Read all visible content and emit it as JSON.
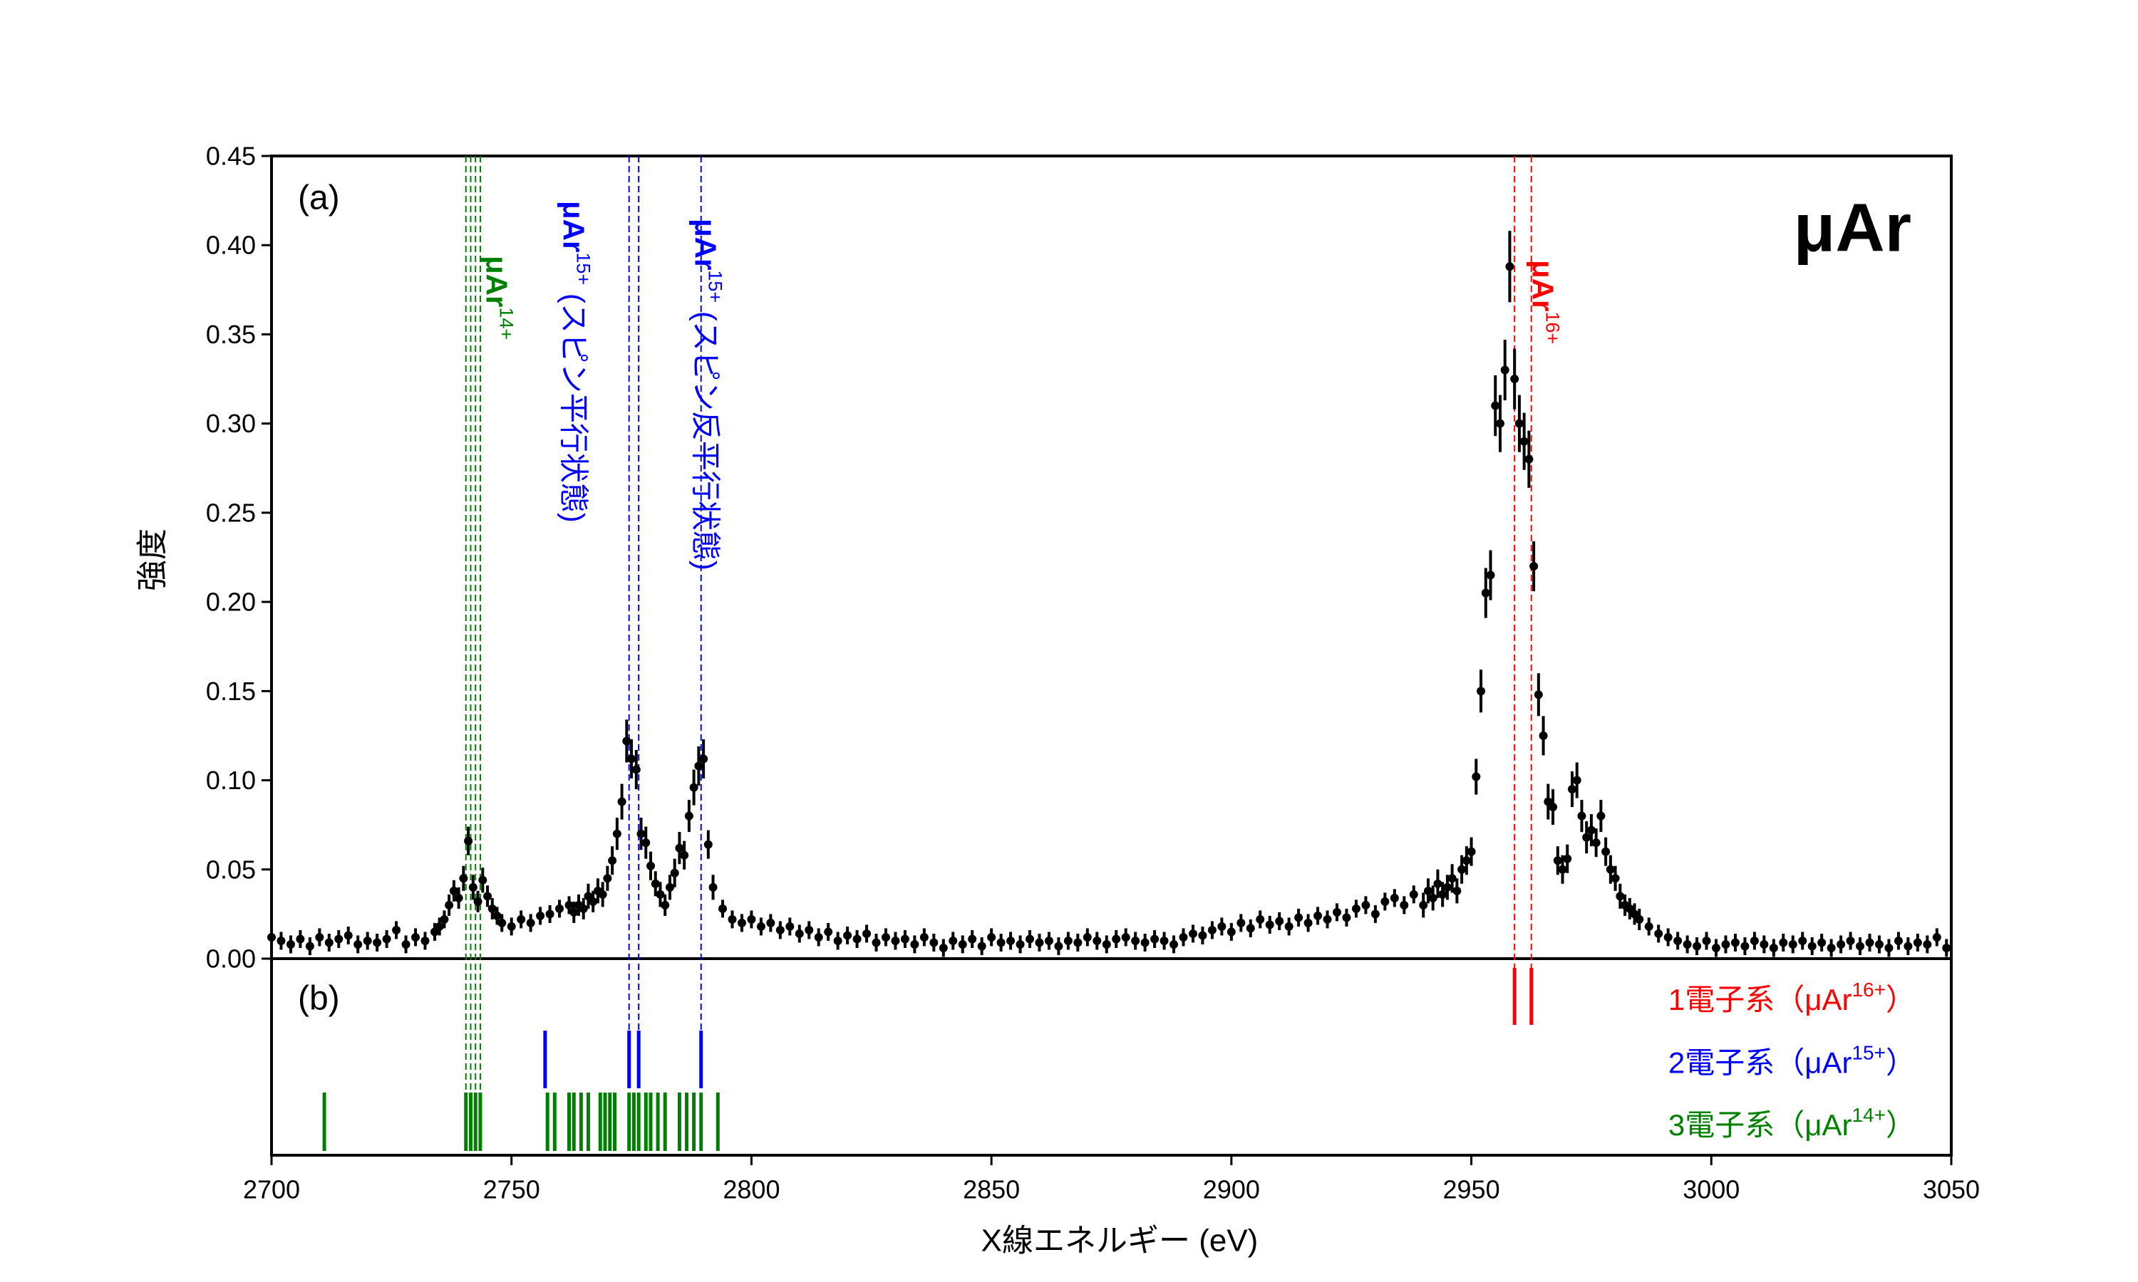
{
  "chart_data": {
    "type": "errorbar",
    "title": "μAr",
    "panel_labels": [
      "(a)",
      "(b)"
    ],
    "xlabel": "X線エネルギー (eV)",
    "ylabel": "強度",
    "xlim": [
      2700,
      3050
    ],
    "xticks": [
      2700,
      2750,
      2800,
      2850,
      2900,
      2950,
      3000,
      3050
    ],
    "ylim": [
      0,
      0.45
    ],
    "yticks": [
      {
        "value": 0,
        "label": "0.00"
      },
      {
        "value": 0.05,
        "label": "0.05"
      },
      {
        "value": 0.1,
        "label": "0.10"
      },
      {
        "value": 0.15,
        "label": "0.15"
      },
      {
        "value": 0.2,
        "label": "0.20"
      },
      {
        "value": 0.25,
        "label": "0.25"
      },
      {
        "value": 0.3,
        "label": "0.30"
      },
      {
        "value": 0.35,
        "label": "0.35"
      },
      {
        "value": 0.4,
        "label": "0.40"
      },
      {
        "value": 0.45,
        "label": "0.45"
      }
    ],
    "series": [
      {
        "color": "#000000",
        "x": [
          2700,
          2702,
          2704,
          2706,
          2708,
          2710,
          2712,
          2714,
          2716,
          2718,
          2720,
          2722,
          2724,
          2726,
          2728,
          2730,
          2732,
          2734,
          2735,
          2736,
          2737,
          2738,
          2739,
          2740,
          2741,
          2742,
          2743,
          2744,
          2745,
          2746,
          2747,
          2748,
          2750,
          2752,
          2754,
          2756,
          2758,
          2760,
          2762,
          2763,
          2764,
          2765,
          2766,
          2767,
          2768,
          2769,
          2770,
          2771,
          2772,
          2773,
          2774,
          2775,
          2776,
          2777,
          2778,
          2779,
          2780,
          2781,
          2782,
          2783,
          2784,
          2785,
          2786,
          2787,
          2788,
          2789,
          2790,
          2791,
          2792,
          2794,
          2796,
          2798,
          2800,
          2802,
          2804,
          2806,
          2808,
          2810,
          2812,
          2814,
          2816,
          2818,
          2820,
          2822,
          2824,
          2826,
          2828,
          2830,
          2832,
          2834,
          2836,
          2838,
          2840,
          2842,
          2844,
          2846,
          2848,
          2850,
          2852,
          2854,
          2856,
          2858,
          2860,
          2862,
          2864,
          2866,
          2868,
          2870,
          2872,
          2874,
          2876,
          2878,
          2880,
          2882,
          2884,
          2886,
          2888,
          2890,
          2892,
          2894,
          2896,
          2898,
          2900,
          2902,
          2904,
          2906,
          2908,
          2910,
          2912,
          2914,
          2916,
          2918,
          2920,
          2922,
          2924,
          2926,
          2928,
          2930,
          2932,
          2934,
          2936,
          2938,
          2940,
          2941,
          2942,
          2943,
          2944,
          2945,
          2946,
          2947,
          2948,
          2949,
          2950,
          2951,
          2952,
          2953,
          2954,
          2955,
          2956,
          2957,
          2958,
          2959,
          2960,
          2961,
          2962,
          2963,
          2964,
          2965,
          2966,
          2967,
          2968,
          2969,
          2970,
          2971,
          2972,
          2973,
          2974,
          2975,
          2976,
          2977,
          2978,
          2979,
          2980,
          2981,
          2982,
          2983,
          2984,
          2985,
          2987,
          2989,
          2991,
          2993,
          2995,
          2997,
          2999,
          3001,
          3003,
          3005,
          3007,
          3009,
          3011,
          3013,
          3015,
          3017,
          3019,
          3021,
          3023,
          3025,
          3027,
          3029,
          3031,
          3033,
          3035,
          3037,
          3039,
          3041,
          3043,
          3045,
          3047,
          3049
        ],
        "values": [
          0.012,
          0.01,
          0.008,
          0.011,
          0.007,
          0.012,
          0.009,
          0.011,
          0.013,
          0.008,
          0.01,
          0.009,
          0.011,
          0.016,
          0.008,
          0.012,
          0.01,
          0.015,
          0.018,
          0.022,
          0.03,
          0.038,
          0.034,
          0.045,
          0.066,
          0.04,
          0.032,
          0.044,
          0.035,
          0.028,
          0.024,
          0.02,
          0.018,
          0.022,
          0.02,
          0.024,
          0.025,
          0.028,
          0.03,
          0.026,
          0.03,
          0.028,
          0.035,
          0.032,
          0.038,
          0.036,
          0.045,
          0.055,
          0.07,
          0.088,
          0.122,
          0.112,
          0.106,
          0.07,
          0.065,
          0.052,
          0.042,
          0.036,
          0.03,
          0.04,
          0.048,
          0.062,
          0.058,
          0.08,
          0.096,
          0.108,
          0.112,
          0.064,
          0.04,
          0.028,
          0.022,
          0.02,
          0.022,
          0.018,
          0.02,
          0.016,
          0.018,
          0.014,
          0.016,
          0.012,
          0.015,
          0.01,
          0.013,
          0.011,
          0.014,
          0.009,
          0.012,
          0.01,
          0.011,
          0.008,
          0.012,
          0.009,
          0.006,
          0.01,
          0.008,
          0.011,
          0.007,
          0.012,
          0.009,
          0.01,
          0.008,
          0.011,
          0.009,
          0.01,
          0.007,
          0.01,
          0.009,
          0.012,
          0.01,
          0.008,
          0.011,
          0.012,
          0.01,
          0.009,
          0.011,
          0.01,
          0.008,
          0.012,
          0.014,
          0.013,
          0.016,
          0.018,
          0.015,
          0.02,
          0.017,
          0.022,
          0.019,
          0.021,
          0.018,
          0.023,
          0.02,
          0.024,
          0.022,
          0.026,
          0.023,
          0.028,
          0.03,
          0.025,
          0.032,
          0.034,
          0.03,
          0.036,
          0.03,
          0.038,
          0.034,
          0.042,
          0.036,
          0.04,
          0.045,
          0.038,
          0.05,
          0.055,
          0.06,
          0.102,
          0.15,
          0.205,
          0.215,
          0.31,
          0.3,
          0.33,
          0.388,
          0.325,
          0.3,
          0.29,
          0.28,
          0.22,
          0.148,
          0.125,
          0.088,
          0.085,
          0.055,
          0.05,
          0.056,
          0.095,
          0.1,
          0.08,
          0.068,
          0.072,
          0.065,
          0.08,
          0.06,
          0.05,
          0.045,
          0.035,
          0.03,
          0.028,
          0.025,
          0.022,
          0.018,
          0.014,
          0.012,
          0.01,
          0.008,
          0.007,
          0.01,
          0.006,
          0.008,
          0.009,
          0.007,
          0.01,
          0.008,
          0.006,
          0.009,
          0.008,
          0.01,
          0.007,
          0.009,
          0.006,
          0.008,
          0.01,
          0.007,
          0.009,
          0.008,
          0.006,
          0.01,
          0.007,
          0.009,
          0.008,
          0.012,
          0.006
        ],
        "errors": [
          0.005,
          0.005,
          0.005,
          0.005,
          0.005,
          0.005,
          0.005,
          0.005,
          0.005,
          0.005,
          0.005,
          0.005,
          0.005,
          0.005,
          0.005,
          0.005,
          0.005,
          0.005,
          0.005,
          0.005,
          0.006,
          0.006,
          0.006,
          0.007,
          0.008,
          0.007,
          0.006,
          0.007,
          0.006,
          0.006,
          0.005,
          0.005,
          0.005,
          0.005,
          0.005,
          0.005,
          0.005,
          0.005,
          0.005,
          0.006,
          0.006,
          0.006,
          0.007,
          0.006,
          0.007,
          0.007,
          0.007,
          0.008,
          0.009,
          0.01,
          0.012,
          0.011,
          0.011,
          0.009,
          0.009,
          0.008,
          0.007,
          0.007,
          0.006,
          0.007,
          0.008,
          0.009,
          0.008,
          0.009,
          0.01,
          0.011,
          0.011,
          0.008,
          0.007,
          0.005,
          0.005,
          0.005,
          0.005,
          0.005,
          0.005,
          0.005,
          0.005,
          0.005,
          0.005,
          0.005,
          0.005,
          0.005,
          0.005,
          0.005,
          0.005,
          0.005,
          0.005,
          0.005,
          0.005,
          0.005,
          0.005,
          0.005,
          0.005,
          0.005,
          0.005,
          0.005,
          0.005,
          0.005,
          0.005,
          0.005,
          0.005,
          0.005,
          0.005,
          0.005,
          0.005,
          0.005,
          0.005,
          0.005,
          0.005,
          0.005,
          0.005,
          0.005,
          0.005,
          0.005,
          0.005,
          0.005,
          0.005,
          0.005,
          0.005,
          0.005,
          0.005,
          0.005,
          0.005,
          0.005,
          0.005,
          0.005,
          0.005,
          0.005,
          0.005,
          0.005,
          0.005,
          0.005,
          0.005,
          0.005,
          0.005,
          0.005,
          0.005,
          0.005,
          0.005,
          0.005,
          0.005,
          0.005,
          0.007,
          0.007,
          0.007,
          0.008,
          0.007,
          0.007,
          0.008,
          0.007,
          0.008,
          0.008,
          0.008,
          0.01,
          0.012,
          0.014,
          0.014,
          0.017,
          0.016,
          0.017,
          0.02,
          0.017,
          0.016,
          0.016,
          0.016,
          0.014,
          0.012,
          0.011,
          0.01,
          0.01,
          0.008,
          0.008,
          0.008,
          0.01,
          0.01,
          0.009,
          0.009,
          0.009,
          0.008,
          0.009,
          0.008,
          0.008,
          0.007,
          0.007,
          0.006,
          0.006,
          0.006,
          0.006,
          0.005,
          0.005,
          0.005,
          0.005,
          0.005,
          0.005,
          0.005,
          0.005,
          0.005,
          0.005,
          0.005,
          0.005,
          0.005,
          0.005,
          0.005,
          0.005,
          0.005,
          0.005,
          0.005,
          0.005,
          0.005,
          0.005,
          0.005,
          0.005,
          0.005,
          0.005,
          0.005,
          0.005,
          0.005,
          0.005,
          0.005,
          0.005
        ]
      }
    ],
    "annotations": [
      {
        "text": "μAr",
        "sup": "14+",
        "color": "#008000",
        "x": 2747
      },
      {
        "text": "μAr",
        "sup": "15+",
        "text_end": " (スピン平行状態)",
        "color": "#0000ff",
        "x": 2763
      },
      {
        "text": "μAr",
        "sup": "15+",
        "text_end": " (スピン反平行状態)",
        "color": "#0000ff",
        "x": 2790.5
      },
      {
        "text": "μAr",
        "sup": "16+",
        "color": "#ff0000",
        "x": 2965
      }
    ],
    "transitions": [
      {
        "label": "1電子系（μAr",
        "label_sup": "16+",
        "label_end": "）",
        "color": "#ff0000",
        "positions": [
          2959,
          2962.5
        ],
        "marked": [
          2959,
          2962.5
        ]
      },
      {
        "label": "2電子系（μAr",
        "label_sup": "15+",
        "label_end": "）",
        "color": "#0000ff",
        "positions": [
          2757,
          2774.5,
          2776.5,
          2789.5
        ],
        "marked": [
          2774.5,
          2776.5,
          2789.5
        ]
      },
      {
        "label": "3電子系（μAr",
        "label_sup": "14+",
        "label_end": "）",
        "color": "#008000",
        "positions": [
          2711,
          2740.5,
          2741.5,
          2742.5,
          2743.5,
          2757.5,
          2759,
          2762,
          2763,
          2764.5,
          2766,
          2768.5,
          2769.5,
          2770.5,
          2771.5,
          2774.5,
          2775.5,
          2776.5,
          2778,
          2779,
          2780.5,
          2782,
          2785,
          2786.5,
          2788,
          2789.5,
          2793
        ],
        "marked": [
          2740.5,
          2741.5,
          2742.5,
          2743.5
        ]
      }
    ]
  }
}
